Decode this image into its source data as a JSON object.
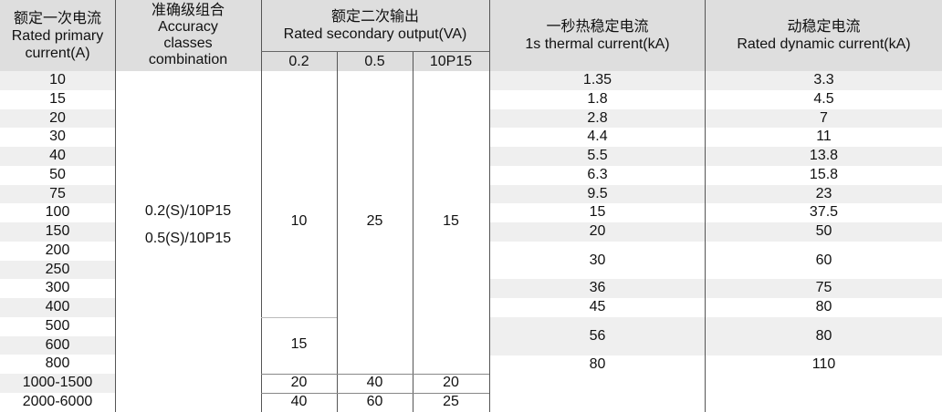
{
  "headers": {
    "primary": [
      "额定一次电流",
      "Rated primary",
      "current(A)"
    ],
    "accuracy": [
      "准确级组合",
      "Accuracy",
      "classes",
      "combination"
    ],
    "secondary": [
      "额定二次输出",
      "Rated secondary output(VA)"
    ],
    "sub": [
      "0.2",
      "0.5",
      "10P15"
    ],
    "thermal": [
      "一秒热稳定电流",
      "1s thermal current(kA)"
    ],
    "dynamic": [
      "动稳定电流",
      "Rated dynamic current(kA)"
    ]
  },
  "primary_currents": [
    "10",
    "15",
    "20",
    "30",
    "40",
    "50",
    "75",
    "100",
    "150",
    "200",
    "250",
    "300",
    "400",
    "500",
    "600",
    "800",
    "1000-1500",
    "2000-6000"
  ],
  "accuracy_combos": [
    "0.2(S)/10P15",
    "0.5(S)/10P15"
  ],
  "output_02": [
    "10",
    "15",
    "20",
    "40"
  ],
  "output_05": [
    "25",
    "40",
    "60"
  ],
  "output_10p15": [
    "15",
    "20",
    "25"
  ],
  "thermal": [
    "1.35",
    "1.8",
    "2.8",
    "4.4",
    "5.5",
    "6.3",
    "9.5",
    "15",
    "20",
    "30",
    "36",
    "45",
    "56",
    "80"
  ],
  "dynamic": [
    "3.3",
    "4.5",
    "7",
    "11",
    "13.8",
    "15.8",
    "23",
    "37.5",
    "50",
    "60",
    "75",
    "80",
    "80",
    "110"
  ]
}
